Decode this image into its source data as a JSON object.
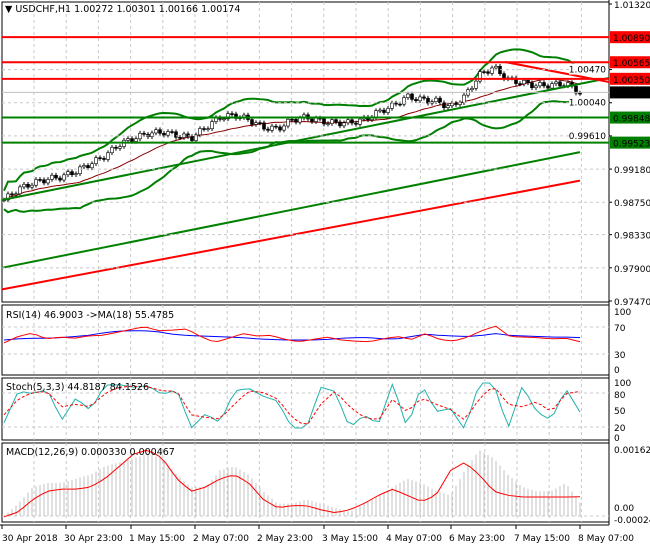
{
  "header": {
    "symbol": "USDCHF,H1",
    "open": "1.00272",
    "high": "1.00301",
    "low": "1.00166",
    "close": "1.00174"
  },
  "colors": {
    "bull": "#000000",
    "bear": "#000000",
    "resistance": "#ff0000",
    "support": "#008000",
    "current": "#000000",
    "rsi": "#ff0000",
    "rsi_ma": "#0000ff",
    "stoch_main": "#20b2aa",
    "stoch_signal": "#ff0000",
    "macd_hist": "#c0c0c0",
    "macd_signal": "#ff0000"
  },
  "chart_data": [
    {
      "type": "candlestick",
      "title": "USDCHF,H1",
      "ylim": [
        0.9747,
        1.0132
      ],
      "price_ticks": [
        "1.01320",
        "1.00470",
        "1.00040",
        "0.99610",
        "0.99180",
        "0.98750",
        "0.98330",
        "0.97900",
        "0.97470"
      ],
      "levels": [
        {
          "value": "1.00890",
          "kind": "resistance"
        },
        {
          "value": "1.00565",
          "kind": "resistance"
        },
        {
          "value": "1.00350",
          "kind": "resistance"
        },
        {
          "value": "1.00174",
          "kind": "current"
        },
        {
          "value": "0.99848",
          "kind": "support"
        },
        {
          "value": "0.99523",
          "kind": "support"
        }
      ],
      "closes": [
        0.9878,
        0.9892,
        0.99,
        0.9905,
        0.9908,
        0.9915,
        0.9925,
        0.9935,
        0.995,
        0.9958,
        0.9964,
        0.9966,
        0.9962,
        0.9958,
        0.9972,
        0.9985,
        0.9988,
        0.9982,
        0.9972,
        0.997,
        0.9982,
        0.9985,
        0.998,
        0.9978,
        0.9978,
        0.9982,
        0.9992,
        1.0,
        1.0012,
        1.0008,
        1.0006,
        0.9998,
        1.0012,
        1.004,
        1.005,
        1.0034,
        1.003,
        1.0026,
        1.0027,
        1.0029,
        1.0017
      ],
      "ma_long_1": [
        0.979,
        0.994
      ],
      "ma_long_2": [
        0.9762,
        0.9903
      ]
    },
    {
      "type": "line",
      "title": "RSI(14) 46.9003  ->MA(18) 55.4785",
      "ylim": [
        0,
        100
      ],
      "ticks": [
        "100",
        "70",
        "30",
        "0"
      ],
      "series": [
        {
          "name": "RSI(14)",
          "values": [
            45,
            56,
            62,
            52,
            55,
            53,
            57,
            58,
            63,
            68,
            73,
            66,
            67,
            69,
            56,
            46,
            53,
            61,
            57,
            58,
            51,
            47,
            51,
            55,
            50,
            48,
            47,
            52,
            56,
            51,
            61,
            51,
            48,
            55,
            66,
            74,
            56,
            55,
            54,
            52,
            53,
            47
          ]
        },
        {
          "name": "MA(18)",
          "values": [
            50,
            52,
            53,
            53,
            54,
            56,
            58,
            62,
            65,
            66,
            66,
            64,
            60,
            58,
            57,
            56,
            55,
            54,
            52,
            51,
            50,
            50,
            50,
            51,
            53,
            54,
            54,
            52,
            52,
            56,
            60,
            58,
            57,
            56,
            58,
            61,
            58,
            57,
            56,
            55,
            55,
            54
          ]
        }
      ]
    },
    {
      "type": "line",
      "title": "Stoch(5,3,3) 44.8187 84.1526",
      "ylim": [
        0,
        100
      ],
      "ticks": [
        "100",
        "80",
        "50",
        "20",
        "0"
      ],
      "series": [
        {
          "name": "Stoch main",
          "values": [
            25,
            85,
            80,
            88,
            30,
            72,
            48,
            96,
            97,
            92,
            95,
            78,
            88,
            15,
            42,
            25,
            85,
            90,
            75,
            66,
            15,
            15,
            92,
            84,
            15,
            40,
            22,
            100,
            14,
            98,
            46,
            52,
            12,
            100,
            100,
            14,
            95,
            45,
            30,
            90,
            45
          ]
        },
        {
          "name": "Stoch signal",
          "values": [
            40,
            70,
            82,
            84,
            55,
            60,
            55,
            80,
            92,
            94,
            93,
            85,
            85,
            40,
            35,
            32,
            60,
            85,
            82,
            70,
            35,
            18,
            60,
            85,
            55,
            35,
            30,
            70,
            45,
            72,
            60,
            50,
            30,
            70,
            95,
            60,
            55,
            65,
            45,
            80,
            84
          ]
        }
      ]
    },
    {
      "type": "bar+line",
      "title": "MACD(12,26,9) 0.000330 0.000467",
      "ylim": [
        -0.000249,
        0.001622
      ],
      "ticks": [
        "0.001622",
        "0.00",
        "-0.000249"
      ],
      "series": [
        {
          "name": "MACD",
          "values": [
            0,
            3,
            7,
            8,
            8,
            9,
            10,
            12,
            13,
            14,
            15,
            14,
            10,
            7,
            7,
            11,
            12,
            10,
            6,
            3,
            3,
            4,
            3,
            2,
            1,
            3,
            5,
            7,
            9,
            8,
            6,
            5,
            11,
            16,
            14,
            10,
            7,
            6,
            6,
            8,
            3.3
          ],
          "unit": "1e-4"
        },
        {
          "name": "Signal",
          "values": [
            -0.2,
            1,
            4,
            6,
            6.5,
            6.5,
            7,
            9,
            12,
            15,
            16,
            14,
            9,
            6,
            7,
            9,
            10,
            8,
            4,
            2,
            2.5,
            2.5,
            1.5,
            0.8,
            1.5,
            3,
            5,
            6.5,
            5,
            3.5,
            5,
            11,
            13,
            10,
            6,
            5,
            4.6,
            4.6,
            4.6,
            4.6,
            4.67
          ],
          "unit": "1e-4"
        }
      ]
    }
  ],
  "time_axis": [
    "30 Apr 2018",
    "30 Apr 23:00",
    "1 May 15:00",
    "2 May 07:00",
    "2 May 23:00",
    "3 May 15:00",
    "4 May 07:00",
    "6 May 23:00",
    "7 May 15:00",
    "8 May 07:00"
  ]
}
